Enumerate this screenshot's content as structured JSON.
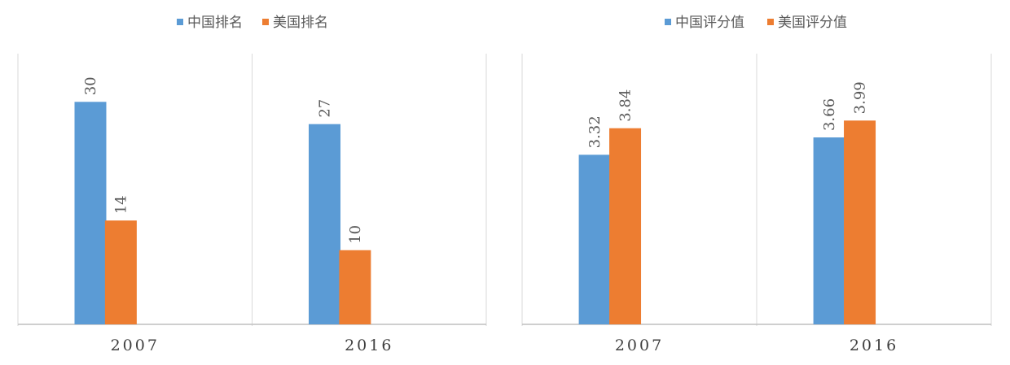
{
  "colors": {
    "china": "#5b9bd5",
    "usa": "#ed7d31",
    "axis": "#bfbfbf",
    "divider": "#d9d9d9"
  },
  "chart_data": [
    {
      "type": "bar",
      "categories": [
        "2007",
        "2016"
      ],
      "series": [
        {
          "name": "中国排名",
          "values": [
            30,
            27
          ]
        },
        {
          "name": "美国排名",
          "values": [
            14,
            10
          ]
        }
      ],
      "value_labels": [
        [
          "30",
          "27"
        ],
        [
          "14",
          "10"
        ]
      ],
      "ylim": [
        0,
        36.5
      ],
      "legend": "top-center",
      "grid": false
    },
    {
      "type": "bar",
      "categories": [
        "2007",
        "2016"
      ],
      "series": [
        {
          "name": "中国评分值",
          "values": [
            3.32,
            3.66
          ]
        },
        {
          "name": "美国评分值",
          "values": [
            3.84,
            3.99
          ]
        }
      ],
      "value_labels": [
        [
          "3.32",
          "3.66"
        ],
        [
          "3.84",
          "3.99"
        ]
      ],
      "ylim": [
        0,
        5.3
      ],
      "legend": "top-center",
      "grid": false
    }
  ]
}
